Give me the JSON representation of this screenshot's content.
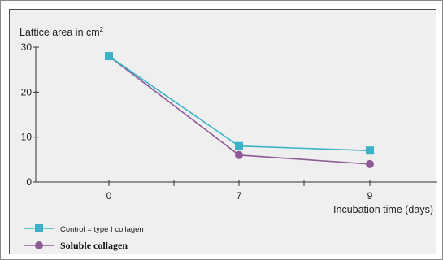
{
  "chart_data": {
    "type": "line",
    "ylabel_text": "Lattice area in cm",
    "ylabel_sup": "2",
    "xlabel": "Incubation time (days)",
    "categories": [
      "0",
      "7",
      "9"
    ],
    "ylim": [
      0,
      30
    ],
    "yticks": [
      "0",
      "10",
      "20",
      "30"
    ],
    "grid": false,
    "legend_position": "bottom-left",
    "series": [
      {
        "name": "Control = type I collagen",
        "values": [
          28,
          8,
          7
        ],
        "color": "#3ab3c8",
        "marker": "square"
      },
      {
        "name": "Soluble collagen",
        "values": [
          28,
          6,
          4
        ],
        "color": "#8e5a96",
        "marker": "circle"
      }
    ]
  }
}
